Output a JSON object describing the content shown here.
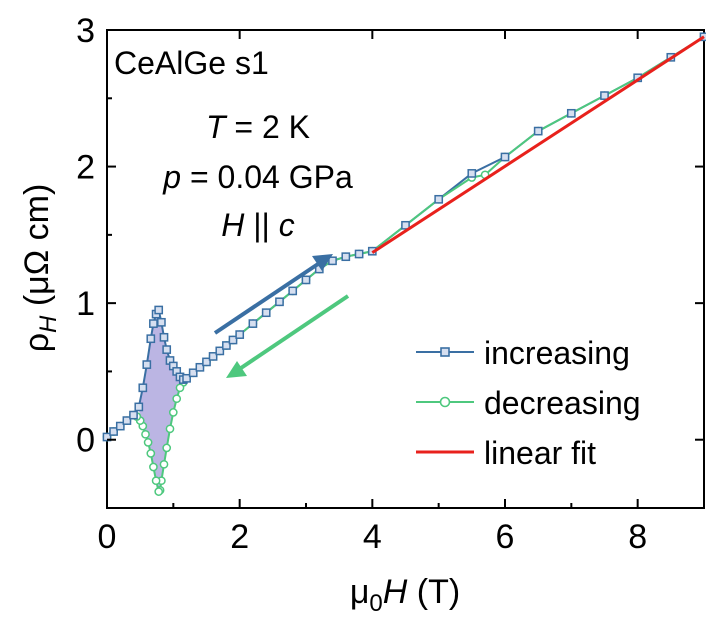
{
  "chart_data": {
    "type": "line",
    "sample_label": "CeAlGe s1",
    "conditions": {
      "temperature": {
        "symbol": "T",
        "rest": " = 2 K"
      },
      "pressure": {
        "symbol": "p",
        "rest": " = 0.04 GPa"
      },
      "field": {
        "symbol1": "H",
        "mid": " || ",
        "symbol2": "c"
      }
    },
    "xlabel": {
      "prefix": "μ",
      "sub": "0",
      "symbol": "H",
      "unit": " (T)"
    },
    "ylabel": {
      "symbol": "ρ",
      "sub": "H",
      "unit": " (μΩ cm)"
    },
    "xlim": [
      0,
      9
    ],
    "ylim": [
      -0.5,
      3
    ],
    "x_ticks": [
      0,
      2,
      4,
      6,
      8
    ],
    "x_tick_labels": [
      "0",
      "2",
      "4",
      "6",
      "8"
    ],
    "y_ticks": [
      0,
      1,
      2,
      3
    ],
    "y_tick_labels": [
      "0",
      "1",
      "2",
      "3"
    ],
    "legend_position": "bottom-right",
    "legend": [
      "increasing",
      "decreasing",
      "linear fit"
    ],
    "colors": {
      "increasing": "#3a6fa3",
      "decreasing": "#4ec87e",
      "linear_fit": "#e8211c",
      "hysteresis_fill": "#8e84d0",
      "arrow_up": "#3a6fa3",
      "arrow_down": "#4ec87e"
    },
    "series": [
      {
        "name": "increasing",
        "marker": "square",
        "x": [
          0.0,
          0.1,
          0.2,
          0.3,
          0.4,
          0.48,
          0.54,
          0.6,
          0.66,
          0.7,
          0.74,
          0.78,
          0.82,
          0.86,
          0.9,
          0.95,
          1.0,
          1.05,
          1.1,
          1.15,
          1.2,
          1.3,
          1.4,
          1.5,
          1.6,
          1.7,
          1.8,
          1.9,
          2.0,
          2.2,
          2.4,
          2.6,
          2.8,
          3.0,
          3.2,
          3.4,
          3.6,
          3.8,
          4.0,
          4.5,
          5.0,
          5.5,
          6.0,
          6.5,
          7.0,
          7.5,
          8.0,
          8.5,
          9.0
        ],
        "y": [
          0.02,
          0.06,
          0.1,
          0.14,
          0.18,
          0.24,
          0.38,
          0.55,
          0.74,
          0.85,
          0.92,
          0.95,
          0.86,
          0.75,
          0.66,
          0.58,
          0.54,
          0.5,
          0.46,
          0.44,
          0.45,
          0.49,
          0.53,
          0.57,
          0.61,
          0.65,
          0.69,
          0.73,
          0.77,
          0.85,
          0.93,
          1.01,
          1.09,
          1.17,
          1.25,
          1.31,
          1.34,
          1.36,
          1.38,
          1.57,
          1.76,
          1.95,
          2.07,
          2.26,
          2.39,
          2.52,
          2.65,
          2.8,
          2.95
        ]
      },
      {
        "name": "decreasing",
        "marker": "circle",
        "x": [
          9.0,
          8.5,
          8.0,
          7.5,
          7.0,
          6.5,
          6.0,
          5.7,
          5.5,
          5.0,
          4.5,
          4.0,
          3.8,
          3.6,
          3.4,
          3.2,
          3.0,
          2.8,
          2.6,
          2.4,
          2.2,
          2.0,
          1.9,
          1.8,
          1.7,
          1.6,
          1.5,
          1.4,
          1.3,
          1.2,
          1.15,
          1.1,
          1.05,
          1.0,
          0.95,
          0.9,
          0.86,
          0.82,
          0.8,
          0.78,
          0.74,
          0.7,
          0.66,
          0.62,
          0.58,
          0.54,
          0.5,
          0.45,
          0.4,
          0.3,
          0.2,
          0.1,
          0.0
        ],
        "y": [
          2.95,
          2.8,
          2.65,
          2.52,
          2.39,
          2.26,
          2.07,
          1.94,
          1.92,
          1.76,
          1.57,
          1.38,
          1.36,
          1.34,
          1.31,
          1.25,
          1.17,
          1.09,
          1.01,
          0.93,
          0.85,
          0.77,
          0.73,
          0.69,
          0.65,
          0.61,
          0.57,
          0.53,
          0.49,
          0.45,
          0.42,
          0.38,
          0.3,
          0.2,
          0.08,
          -0.06,
          -0.18,
          -0.3,
          -0.37,
          -0.38,
          -0.3,
          -0.2,
          -0.1,
          -0.02,
          0.04,
          0.1,
          0.14,
          0.17,
          0.18,
          0.14,
          0.1,
          0.06,
          0.02
        ]
      },
      {
        "name": "linear fit",
        "marker": "none",
        "x": [
          4.0,
          9.0
        ],
        "y": [
          1.37,
          2.95
        ]
      }
    ]
  }
}
